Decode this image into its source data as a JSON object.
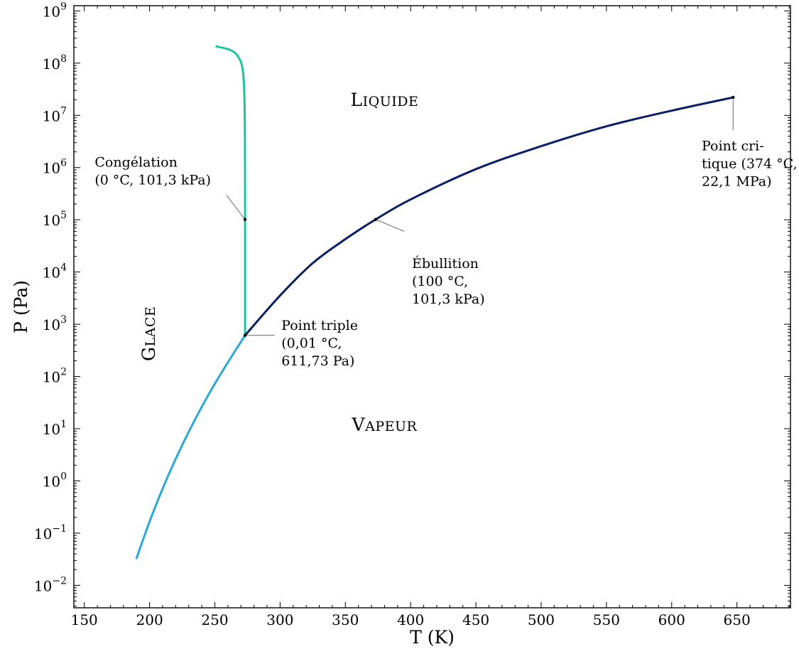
{
  "chart_data": {
    "type": "line",
    "title": "",
    "xlabel": "T (K)",
    "ylabel": "P (Pa)",
    "xlim": [
      142,
      691
    ],
    "ylim_log10": [
      -2.43,
      9.1
    ],
    "y_scale": "log",
    "grid": false,
    "x_ticks": [
      150,
      200,
      250,
      300,
      350,
      400,
      450,
      500,
      550,
      600,
      650
    ],
    "y_ticks": [
      {
        "base": "10",
        "exp": "9",
        "log": 9
      },
      {
        "base": "10",
        "exp": "8",
        "log": 8
      },
      {
        "base": "10",
        "exp": "7",
        "log": 7
      },
      {
        "base": "10",
        "exp": "6",
        "log": 6
      },
      {
        "base": "10",
        "exp": "5",
        "log": 5
      },
      {
        "base": "10",
        "exp": "4",
        "log": 4
      },
      {
        "base": "10",
        "exp": "3",
        "log": 3
      },
      {
        "base": "10",
        "exp": "2",
        "log": 2
      },
      {
        "base": "10",
        "exp": "1",
        "log": 1
      },
      {
        "base": "10",
        "exp": "0",
        "log": 0
      },
      {
        "base": "10",
        "exp": "−1",
        "log": -1
      },
      {
        "base": "10",
        "exp": "−2",
        "log": -2
      }
    ],
    "series": [
      {
        "color": "#2aa9d9",
        "points_T_log10P": [
          [
            190,
            -1.48
          ],
          [
            200,
            -0.78
          ],
          [
            210,
            -0.15
          ],
          [
            220,
            0.42
          ],
          [
            230,
            0.94
          ],
          [
            240,
            1.42
          ],
          [
            250,
            1.86
          ],
          [
            260,
            2.27
          ],
          [
            273.16,
            2.787
          ]
        ]
      },
      {
        "color": "#1fc3a4",
        "points_T_log10P": [
          [
            273.16,
            2.787
          ],
          [
            273.16,
            5.006
          ],
          [
            273.1,
            6.0
          ],
          [
            272.8,
            7.2
          ],
          [
            271.5,
            7.85
          ],
          [
            268,
            8.12
          ],
          [
            262,
            8.25
          ],
          [
            251.2,
            8.32
          ]
        ]
      },
      {
        "color": "#0a1e66",
        "points_T_log10P": [
          [
            273.16,
            2.787
          ],
          [
            300,
            3.55
          ],
          [
            325,
            4.17
          ],
          [
            350,
            4.63
          ],
          [
            373.15,
            5.006
          ],
          [
            400,
            5.39
          ],
          [
            450,
            5.97
          ],
          [
            500,
            6.41
          ],
          [
            550,
            6.79
          ],
          [
            600,
            7.09
          ],
          [
            647.1,
            7.344
          ]
        ]
      }
    ],
    "points": [
      {
        "T": 273.15,
        "log10P": 5.006
      },
      {
        "T": 273.16,
        "log10P": 2.787
      },
      {
        "T": 373.15,
        "log10P": 5.006
      },
      {
        "T": 647.1,
        "log10P": 7.344
      }
    ],
    "region_labels": [
      {
        "big": "L",
        "small": "IQUIDE",
        "T": 380,
        "log10P": 7.18
      },
      {
        "big": "G",
        "small": "LACE",
        "T": 204,
        "log10P": 2.82
      },
      {
        "big": "V",
        "small": "APEUR",
        "T": 380,
        "log10P": 0.96
      }
    ],
    "annotations": [
      {
        "lines": [
          "Congélation",
          "(0 °C, 101,3 kPa)"
        ],
        "T": 158,
        "log10P": 6.02
      },
      {
        "lines": [
          "Point cri-",
          "tique (374 °C,",
          "22,1 MPa)"
        ],
        "T": 623,
        "log10P": 6.33
      },
      {
        "lines": [
          "Ébullition",
          "(100 °C,",
          "101,3 kPa)"
        ],
        "T": 401,
        "log10P": 4.08
      },
      {
        "lines": [
          "Point triple",
          "(0,01 °C,",
          "611,73 Pa)"
        ],
        "T": 301,
        "log10P": 2.89
      }
    ]
  }
}
